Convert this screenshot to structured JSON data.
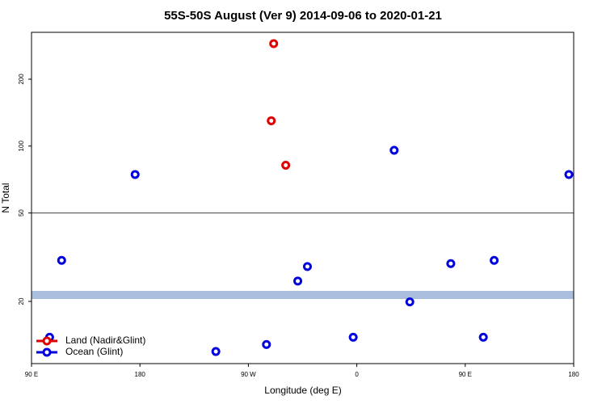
{
  "chart_data": {
    "type": "scatter",
    "title": "55S-50S August (Ver 9)   2014-09-06 to 2020-01-21",
    "xlabel": "Longitude (deg E)",
    "ylabel": "N Total",
    "xlim": [
      90,
      540
    ],
    "xticks": [
      {
        "value": 90,
        "label": "90 E"
      },
      {
        "value": 180,
        "label": "180"
      },
      {
        "value": 270,
        "label": "90 W"
      },
      {
        "value": 360,
        "label": "0"
      },
      {
        "value": 450,
        "label": "90 E"
      },
      {
        "value": 540,
        "label": "180"
      }
    ],
    "ylim": [
      10.5,
      325
    ],
    "yticks": [
      20,
      50,
      100,
      200
    ],
    "log_y": true,
    "hline": 50,
    "band": [
      20.5,
      22.3
    ],
    "band_color": "#a8bedc",
    "legend": "bottom-left",
    "series": [
      {
        "name": "Land (Nadir&Glint)",
        "color": "#e00000",
        "x": [
          291,
          289,
          301
        ],
        "values": [
          289,
          130,
          82
        ]
      },
      {
        "name": "Ocean (Glint)",
        "color": "#0000dd",
        "x": [
          105,
          115,
          176,
          243,
          285,
          311,
          319,
          357,
          391,
          404,
          438,
          465,
          474,
          536
        ],
        "values": [
          13.8,
          30.6,
          74.5,
          11.9,
          12.8,
          24.7,
          28.7,
          13.8,
          95.7,
          19.9,
          29.6,
          13.8,
          30.6,
          74.5
        ]
      }
    ]
  }
}
